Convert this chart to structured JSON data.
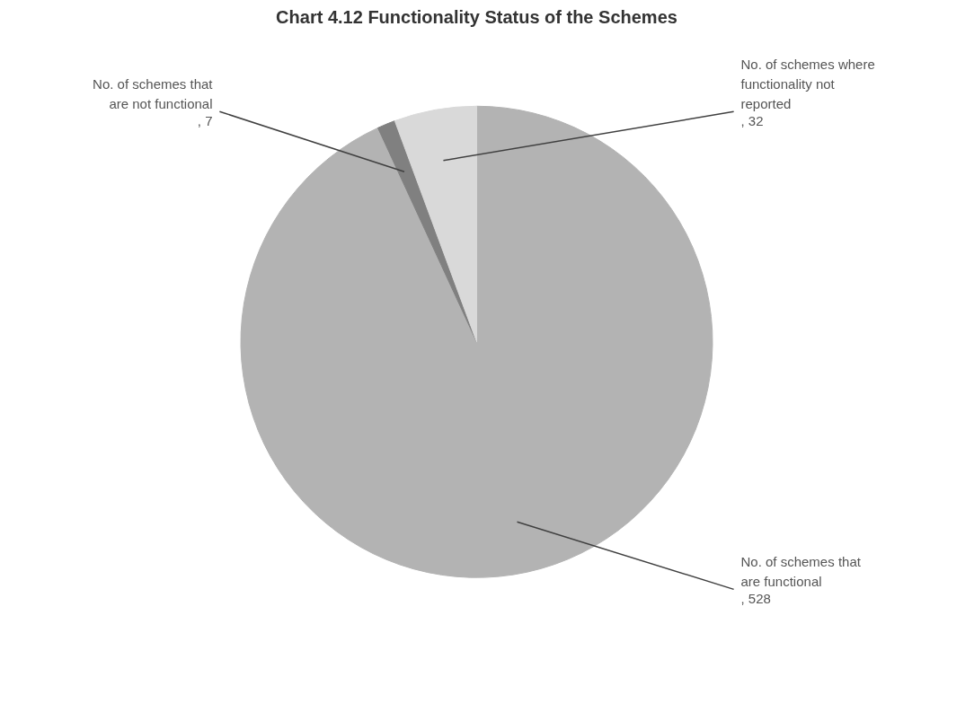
{
  "chart_data": {
    "type": "pie",
    "title": "Chart 4.12 Functionality Status of the Schemes",
    "categories": [
      "No. of schemes that are functional",
      "No. of schemes that are not functional",
      "No. of schemes where functionality not reported"
    ],
    "values": [
      528,
      7,
      32
    ],
    "value_labels": [
      ", 528",
      ", 7",
      ", 32"
    ],
    "colors": [
      "#b3b3b3",
      "#808080",
      "#d9d9d9"
    ]
  }
}
